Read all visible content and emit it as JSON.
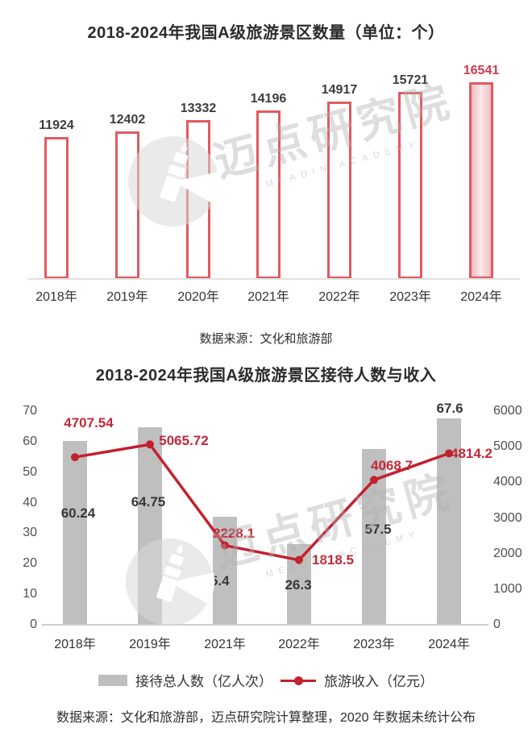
{
  "watermark": {
    "text": "迈点研究院",
    "subtext": "MEADIN ACADEMY"
  },
  "colors": {
    "bar_outline_red": "#e15a5e",
    "bar_highlight_fill": "#f8d7d9",
    "highlight_label_red": "#d03a4b",
    "bar_gray": "#bfbfbf",
    "line_red": "#c2212f",
    "label_dark": "#3d3d3d",
    "axis_gray": "#e0e0e0"
  },
  "chart_data": [
    {
      "type": "bar",
      "title": "2018-2024年我国A级旅游景区数量（单位：个）",
      "categories": [
        "2018年",
        "2019年",
        "2020年",
        "2021年",
        "2022年",
        "2023年",
        "2024年"
      ],
      "values": [
        11924,
        12402,
        13332,
        14196,
        14917,
        15721,
        16541
      ],
      "highlight_index": 6,
      "ylim": [
        0,
        16541
      ],
      "grid": false,
      "data_labels": true,
      "source": "数据来源：文化和旅游部"
    },
    {
      "type": "combo",
      "title": "2018-2024年我国A级旅游景区接待人数与收入",
      "categories": [
        "2018年",
        "2019年",
        "2021年",
        "2022年",
        "2023年",
        "2024年"
      ],
      "series": [
        {
          "name": "接待总人数（亿人次）",
          "type": "bar",
          "axis": "left",
          "values": [
            60.24,
            64.75,
            35.4,
            26.3,
            57.5,
            67.6
          ]
        },
        {
          "name": "旅游收入（亿元）",
          "type": "line",
          "axis": "right",
          "values": [
            4707.54,
            5065.72,
            2228.1,
            1818.5,
            4068.7,
            4814.2
          ]
        }
      ],
      "left_axis": {
        "min": 0,
        "max": 70,
        "ticks": [
          0,
          10,
          20,
          30,
          40,
          50,
          60,
          70
        ]
      },
      "right_axis": {
        "min": 0,
        "max": 6000,
        "ticks": [
          0,
          1000,
          2000,
          3000,
          4000,
          5000,
          6000
        ]
      },
      "grid": false,
      "legend_position": "bottom",
      "source": "数据来源：文化和旅游部，迈点研究院计算整理，2020 年数据未统计公布"
    }
  ]
}
